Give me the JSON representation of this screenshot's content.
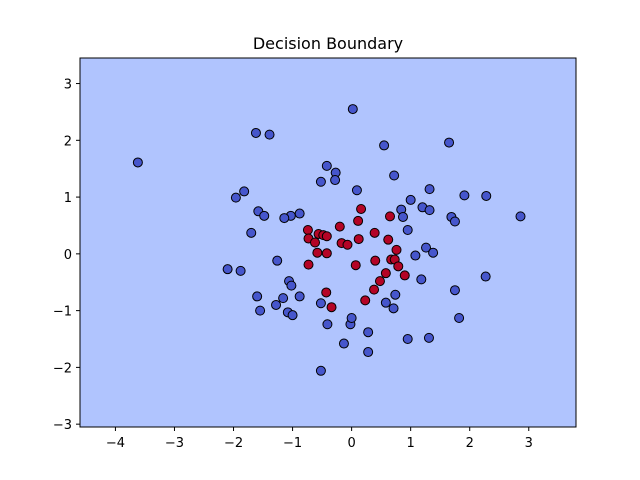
{
  "chart_data": {
    "type": "scatter",
    "title": "Decision Boundary",
    "xlabel": "",
    "ylabel": "",
    "xlim": [
      -4.6,
      3.8
    ],
    "ylim": [
      -3.05,
      3.45
    ],
    "xticks": [
      -4,
      -3,
      -2,
      -1,
      0,
      1,
      2,
      3
    ],
    "yticks": [
      -3,
      -2,
      -1,
      0,
      1,
      2,
      3
    ],
    "grid": false,
    "legend": "none",
    "background_color": "#b0c4fe",
    "colors": {
      "class_0": "#4656cc",
      "class_1": "#b40426",
      "marker_edge": "#000000"
    },
    "series": [
      {
        "class": 0,
        "points": [
          [
            0.02,
            2.55
          ],
          [
            -1.62,
            2.13
          ],
          [
            -1.39,
            2.1
          ],
          [
            -3.62,
            1.61
          ],
          [
            0.55,
            1.91
          ],
          [
            1.65,
            1.96
          ],
          [
            -0.42,
            1.55
          ],
          [
            -0.27,
            1.43
          ],
          [
            0.72,
            1.38
          ],
          [
            -0.52,
            1.27
          ],
          [
            -0.28,
            1.3
          ],
          [
            0.09,
            1.12
          ],
          [
            -1.82,
            1.1
          ],
          [
            -1.96,
            0.99
          ],
          [
            1.32,
            1.14
          ],
          [
            1.91,
            1.03
          ],
          [
            2.28,
            1.02
          ],
          [
            1.0,
            0.95
          ],
          [
            0.84,
            0.78
          ],
          [
            1.2,
            0.82
          ],
          [
            1.32,
            0.77
          ],
          [
            -1.58,
            0.75
          ],
          [
            -1.48,
            0.67
          ],
          [
            -1.03,
            0.67
          ],
          [
            -0.88,
            0.71
          ],
          [
            -1.14,
            0.63
          ],
          [
            0.87,
            0.65
          ],
          [
            1.69,
            0.65
          ],
          [
            1.75,
            0.57
          ],
          [
            2.86,
            0.66
          ],
          [
            -1.7,
            0.37
          ],
          [
            0.95,
            0.42
          ],
          [
            1.26,
            0.11
          ],
          [
            1.38,
            0.02
          ],
          [
            1.08,
            -0.03
          ],
          [
            -1.26,
            -0.12
          ],
          [
            -2.1,
            -0.27
          ],
          [
            -1.88,
            -0.3
          ],
          [
            1.18,
            -0.45
          ],
          [
            -1.06,
            -0.48
          ],
          [
            -1.02,
            -0.56
          ],
          [
            1.75,
            -0.64
          ],
          [
            2.27,
            -0.4
          ],
          [
            -1.6,
            -0.75
          ],
          [
            -1.16,
            -0.78
          ],
          [
            -0.88,
            -0.75
          ],
          [
            0.74,
            -0.72
          ],
          [
            -1.55,
            -1.0
          ],
          [
            -1.28,
            -0.9
          ],
          [
            -1.08,
            -1.03
          ],
          [
            -1.0,
            -1.08
          ],
          [
            -0.52,
            -0.87
          ],
          [
            0.58,
            -0.86
          ],
          [
            0.71,
            -0.96
          ],
          [
            1.82,
            -1.13
          ],
          [
            -0.41,
            -1.24
          ],
          [
            -0.02,
            -1.24
          ],
          [
            0.0,
            -1.13
          ],
          [
            0.28,
            -1.38
          ],
          [
            1.31,
            -1.48
          ],
          [
            0.95,
            -1.5
          ],
          [
            -0.13,
            -1.58
          ],
          [
            0.28,
            -1.73
          ],
          [
            -0.52,
            -2.06
          ]
        ]
      },
      {
        "class": 1,
        "points": [
          [
            0.16,
            0.79
          ],
          [
            0.65,
            0.66
          ],
          [
            0.11,
            0.58
          ],
          [
            -0.74,
            0.42
          ],
          [
            -0.56,
            0.35
          ],
          [
            -0.48,
            0.33
          ],
          [
            -0.73,
            0.27
          ],
          [
            -0.62,
            0.2
          ],
          [
            -0.42,
            0.31
          ],
          [
            -0.2,
            0.48
          ],
          [
            0.39,
            0.37
          ],
          [
            0.62,
            0.25
          ],
          [
            0.12,
            0.26
          ],
          [
            -0.17,
            0.19
          ],
          [
            -0.07,
            0.16
          ],
          [
            0.76,
            0.07
          ],
          [
            -0.58,
            0.02
          ],
          [
            -0.42,
            0.01
          ],
          [
            0.67,
            -0.1
          ],
          [
            0.73,
            -0.1
          ],
          [
            0.4,
            -0.12
          ],
          [
            0.07,
            -0.2
          ],
          [
            -0.73,
            -0.19
          ],
          [
            0.79,
            -0.22
          ],
          [
            0.58,
            -0.34
          ],
          [
            0.9,
            -0.38
          ],
          [
            0.48,
            -0.48
          ],
          [
            0.38,
            -0.63
          ],
          [
            -0.43,
            -0.68
          ],
          [
            0.23,
            -0.82
          ],
          [
            -0.34,
            -0.94
          ]
        ]
      }
    ]
  }
}
